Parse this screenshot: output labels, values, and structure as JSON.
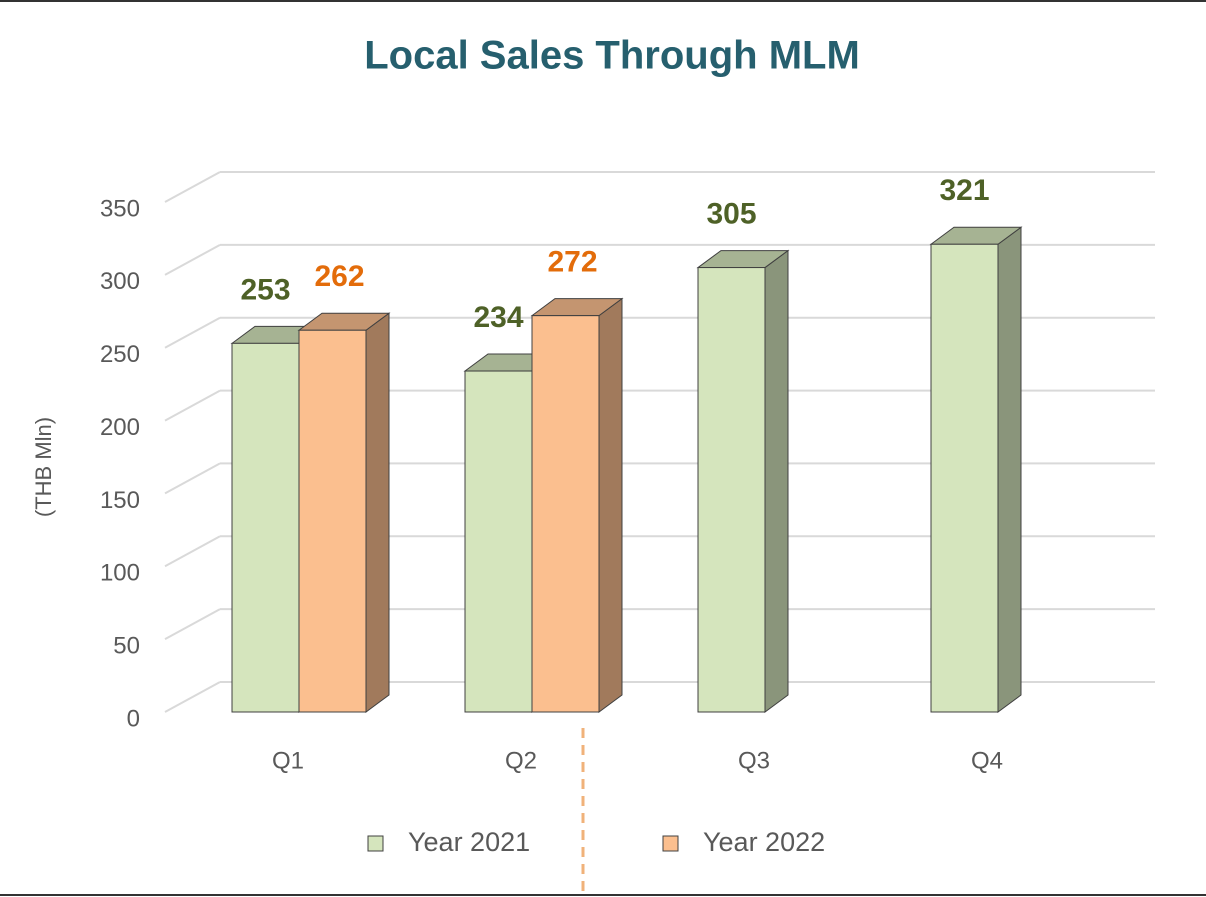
{
  "chart_data": {
    "type": "bar3d",
    "title": "Local Sales Through MLM",
    "ylabel": "(THB Mln)",
    "categories": [
      "Q1",
      "Q2",
      "Q3",
      "Q4"
    ],
    "series": [
      {
        "name": "Year 2021",
        "color": "#d5e5bd",
        "label_color": "#4e6127",
        "values": [
          253,
          234,
          305,
          321
        ]
      },
      {
        "name": "Year 2022",
        "color": "#fbbf8f",
        "label_color": "#e36c0a",
        "values": [
          262,
          272,
          null,
          null
        ]
      }
    ],
    "ylim": [
      0,
      350
    ],
    "yticks": [
      0,
      50,
      100,
      150,
      200,
      250,
      300,
      350
    ],
    "grid": true,
    "legend": "bottom"
  }
}
